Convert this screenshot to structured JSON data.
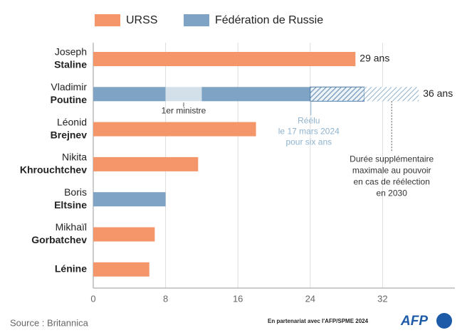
{
  "chart_data": {
    "type": "bar",
    "orientation": "horizontal",
    "categories": [
      "Staline",
      "Poutine",
      "Brejnev",
      "Khrouchtchev",
      "Eltsine",
      "Gorbatchev",
      "Lénine"
    ],
    "first_names": [
      "Joseph",
      "Vladimir",
      "Léonid",
      "Nikita",
      "Boris",
      "Mikhaïl",
      null
    ],
    "series": [
      {
        "name": "URSS",
        "color": "#f4956a",
        "values": [
          29,
          null,
          18,
          11.6,
          null,
          6.8,
          6.2
        ],
        "value_labels": [
          "29 ans",
          null,
          null,
          null,
          null,
          null,
          null
        ]
      },
      {
        "name": "Fédération de Russie",
        "color": "#7fa3c4",
        "values": [
          null,
          null,
          null,
          null,
          8,
          null,
          null
        ]
      }
    ],
    "stacked_bar": {
      "category_index": 1,
      "total_label": "36 ans",
      "segments": [
        {
          "value": 8,
          "color": "#7fa3c4"
        },
        {
          "value": 4,
          "color": "#d3e0ea",
          "annotation": [
            "1er ministre"
          ]
        },
        {
          "value": 12,
          "color": "#7fa3c4"
        },
        {
          "value": 6,
          "color": "#7fa3c4",
          "hatched": true,
          "annotation": [
            "Réélu",
            "le 17 mars 2024",
            "pour six ans"
          ]
        },
        {
          "value": 6,
          "color": "#7fa3c4",
          "hatched": true,
          "light": true,
          "annotation": [
            "Durée supplémentaire",
            "maximale au pouvoir",
            "en cas de réélection",
            "en 2030"
          ]
        }
      ]
    },
    "xlim": [
      0,
      40
    ],
    "xticks": [
      0,
      8,
      16,
      24,
      32
    ],
    "grid": true,
    "source": "Source : Britannica",
    "partner": "En partenariat avec l'AFP/SPME 2024",
    "logo": "AFP"
  }
}
